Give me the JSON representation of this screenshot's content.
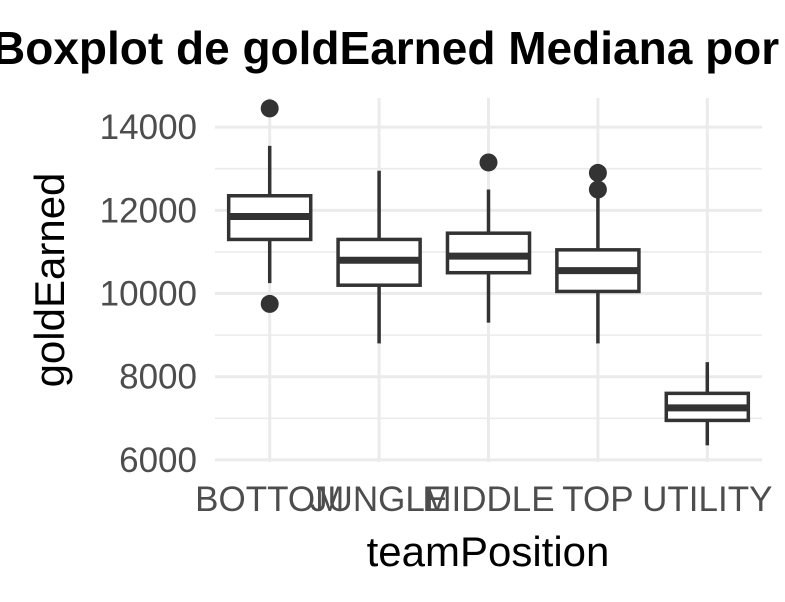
{
  "chart_data": {
    "type": "boxplot",
    "title": "Boxplot de goldEarned Mediana por teamPosition",
    "xlabel": "teamPosition",
    "ylabel": "goldEarned",
    "ylim": [
      5950,
      14700
    ],
    "yticks": [
      "6000",
      "8000",
      "10000",
      "12000",
      "14000"
    ],
    "grid": true,
    "categories": [
      "BOTTOM",
      "JUNGLE",
      "MIDDLE",
      "TOP",
      "UTILITY"
    ],
    "boxes": [
      {
        "category": "BOTTOM",
        "whisker_low": 10250,
        "q1": 11300,
        "median": 11850,
        "q3": 12350,
        "whisker_high": 13550,
        "outliers": [
          14450,
          9750
        ]
      },
      {
        "category": "JUNGLE",
        "whisker_low": 8800,
        "q1": 10200,
        "median": 10800,
        "q3": 11300,
        "whisker_high": 12950,
        "outliers": []
      },
      {
        "category": "MIDDLE",
        "whisker_low": 9300,
        "q1": 10500,
        "median": 10900,
        "q3": 11450,
        "whisker_high": 12500,
        "outliers": [
          13150
        ]
      },
      {
        "category": "TOP",
        "whisker_low": 8800,
        "q1": 10050,
        "median": 10550,
        "q3": 11050,
        "whisker_high": 12300,
        "outliers": [
          12900,
          12500
        ]
      },
      {
        "category": "UTILITY",
        "whisker_low": 6350,
        "q1": 6950,
        "median": 7250,
        "q3": 7600,
        "whisker_high": 8350,
        "outliers": []
      }
    ],
    "colors": {
      "box": "#333333",
      "grid": "#ebebeb",
      "tick_text": "#4d4d4d",
      "background": "#ffffff"
    }
  }
}
